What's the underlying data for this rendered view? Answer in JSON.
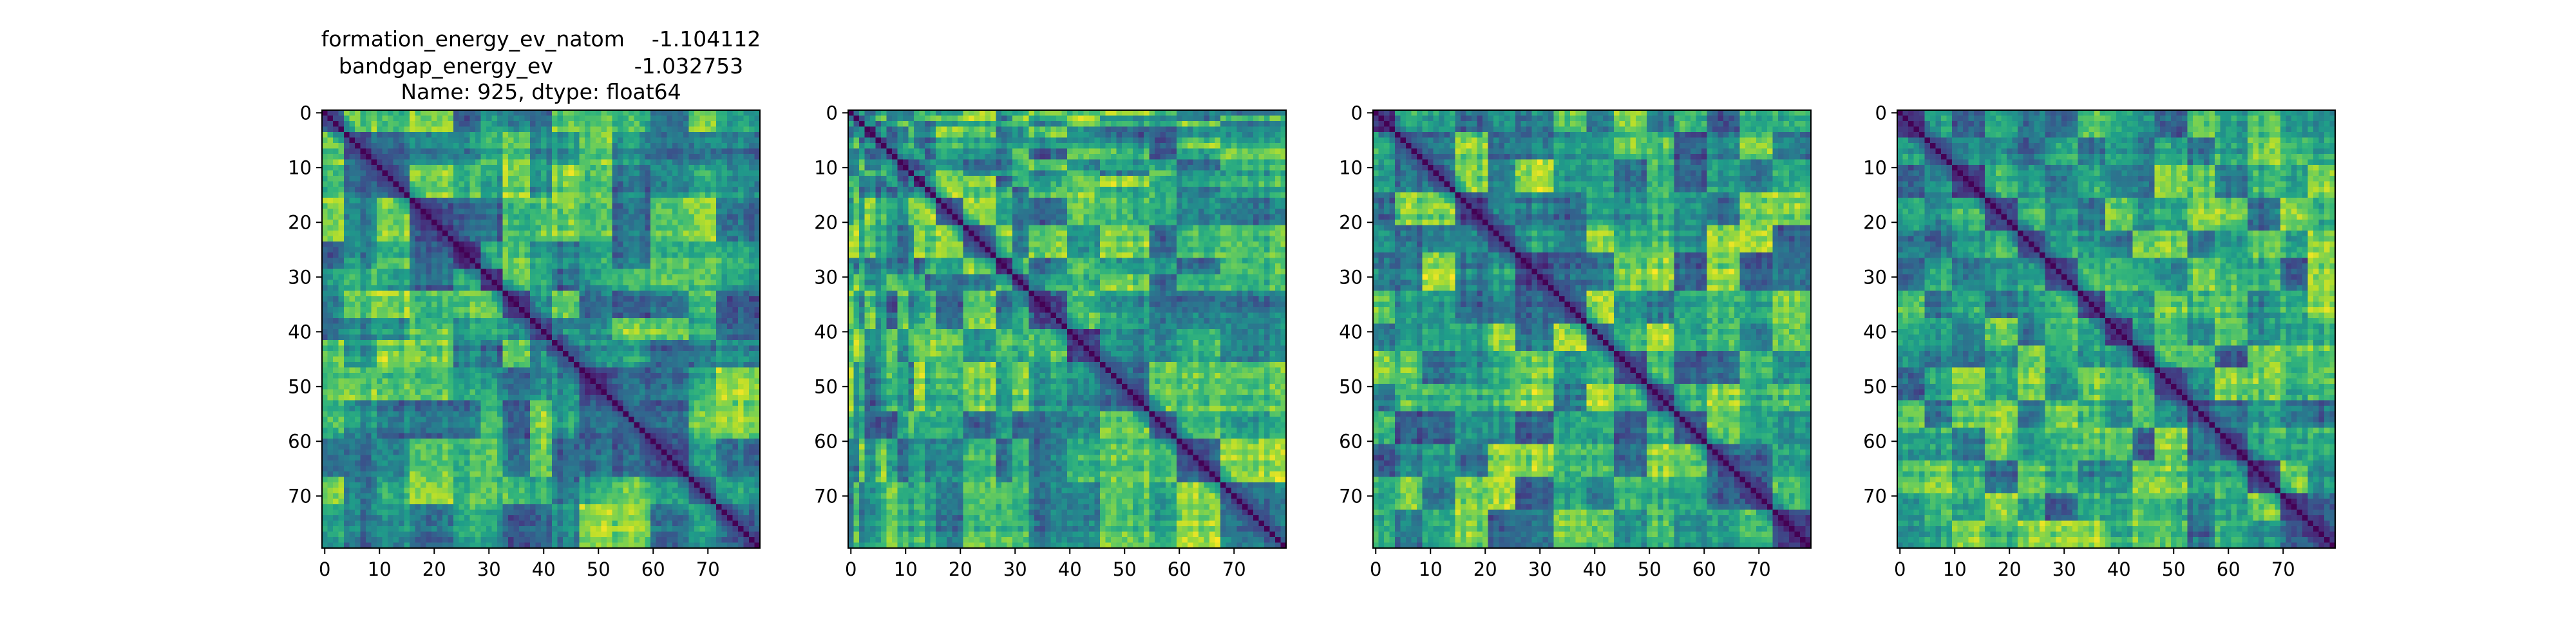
{
  "colors": {
    "colormap": "viridis",
    "cmap_stops": [
      "#440154",
      "#482878",
      "#3e4989",
      "#31688e",
      "#26828e",
      "#1f9e89",
      "#35b779",
      "#6ece58",
      "#b5de2b",
      "#fde725"
    ],
    "axis_frame": "#000000",
    "background": "#ffffff"
  },
  "title_lines": [
    "formation_energy_ev_natom    -1.104112",
    "bandgap_energy_ev            -1.032753",
    "Name: 925, dtype: float64"
  ],
  "chart_data": [
    {
      "type": "heatmap",
      "title": "formation_energy_ev_natom    -1.104112\nbandgap_energy_ev            -1.032753\nName: 925, dtype: float64",
      "matrix_size": 80,
      "colormap": "viridis",
      "diagonal_value": "minimum",
      "xlim": [
        -0.5,
        79.5
      ],
      "ylim": [
        79.5,
        -0.5
      ],
      "xticks": [
        0,
        10,
        20,
        30,
        40,
        50,
        60,
        70
      ],
      "yticks": [
        0,
        10,
        20,
        30,
        40,
        50,
        60,
        70
      ],
      "xticklabels": [
        "0",
        "10",
        "20",
        "30",
        "40",
        "50",
        "60",
        "70"
      ],
      "yticklabels": [
        "0",
        "10",
        "20",
        "30",
        "40",
        "50",
        "60",
        "70"
      ],
      "block_boundaries": [
        4,
        10,
        16,
        24,
        29,
        33,
        38,
        42,
        47,
        53,
        60,
        67,
        72
      ],
      "grid": false
    },
    {
      "type": "heatmap",
      "title": "",
      "matrix_size": 80,
      "colormap": "viridis",
      "diagonal_value": "minimum",
      "xlim": [
        -0.5,
        79.5
      ],
      "ylim": [
        79.5,
        -0.5
      ],
      "xticks": [
        0,
        10,
        20,
        30,
        40,
        50,
        60,
        70
      ],
      "yticks": [
        0,
        10,
        20,
        30,
        40,
        50,
        60,
        70
      ],
      "xticklabels": [
        "0",
        "10",
        "20",
        "30",
        "40",
        "50",
        "60",
        "70"
      ],
      "yticklabels": [
        "0",
        "10",
        "20",
        "30",
        "40",
        "50",
        "60",
        "70"
      ],
      "block_boundaries": [
        1,
        2,
        3,
        5,
        7,
        9,
        11,
        12,
        14,
        16,
        21,
        27,
        30,
        33,
        40,
        46,
        55,
        60,
        68
      ],
      "grid": false
    },
    {
      "type": "heatmap",
      "title": "",
      "matrix_size": 80,
      "colormap": "viridis",
      "diagonal_value": "minimum",
      "xlim": [
        -0.5,
        79.5
      ],
      "ylim": [
        79.5,
        -0.5
      ],
      "xticks": [
        0,
        10,
        20,
        30,
        40,
        50,
        60,
        70
      ],
      "yticks": [
        0,
        10,
        20,
        30,
        40,
        50,
        60,
        70
      ],
      "xticklabels": [
        "0",
        "10",
        "20",
        "30",
        "40",
        "50",
        "60",
        "70"
      ],
      "yticklabels": [
        "0",
        "10",
        "20",
        "30",
        "40",
        "50",
        "60",
        "70"
      ],
      "block_boundaries": [
        4,
        9,
        15,
        21,
        26,
        33,
        39,
        44,
        50,
        55,
        61,
        67,
        73
      ],
      "grid": false
    },
    {
      "type": "heatmap",
      "title": "",
      "matrix_size": 80,
      "colormap": "viridis",
      "diagonal_value": "minimum",
      "xlim": [
        -0.5,
        79.5
      ],
      "ylim": [
        79.5,
        -0.5
      ],
      "xticks": [
        0,
        10,
        20,
        30,
        40,
        50,
        60,
        70
      ],
      "yticks": [
        0,
        10,
        20,
        30,
        40,
        50,
        60,
        70
      ],
      "xticklabels": [
        "0",
        "10",
        "20",
        "30",
        "40",
        "50",
        "60",
        "70"
      ],
      "yticklabels": [
        "0",
        "10",
        "20",
        "30",
        "40",
        "50",
        "60",
        "70"
      ],
      "block_boundaries": [
        5,
        10,
        16,
        22,
        27,
        33,
        38,
        43,
        47,
        53,
        58,
        64,
        70,
        75
      ],
      "grid": false
    }
  ]
}
